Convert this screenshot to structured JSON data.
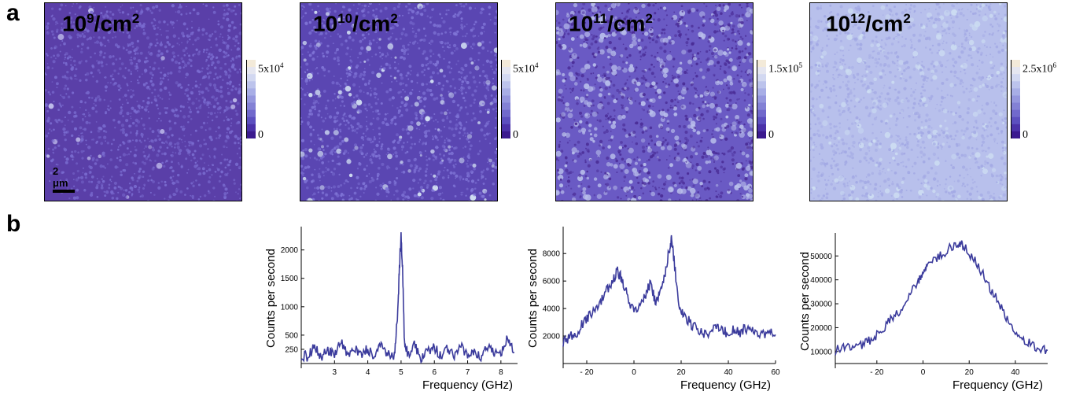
{
  "panels": {
    "a": "a",
    "b": "b"
  },
  "maps": [
    {
      "density_base": "10",
      "density_exp": "9",
      "density_unit": "/cm",
      "density_unit_exp": "2",
      "cbar_max_base": "5x10",
      "cbar_max_exp": "4",
      "cbar_min": "0",
      "base_color": "#5a3fa8",
      "speckle_color": "#7a6cd0",
      "bright_color": "#c7c6f0",
      "bright_fraction": 0.01
    },
    {
      "density_base": "10",
      "density_exp": "10",
      "density_unit": "/cm",
      "density_unit_exp": "2",
      "cbar_max_base": "5x10",
      "cbar_max_exp": "4",
      "cbar_min": "0",
      "base_color": "#5a46b2",
      "speckle_color": "#7f74d6",
      "bright_color": "#d7e6f5",
      "bright_fraction": 0.06
    },
    {
      "density_base": "10",
      "density_exp": "11",
      "density_unit": "/cm",
      "density_unit_exp": "2",
      "cbar_max_base": "1.5x10",
      "cbar_max_exp": "5",
      "cbar_min": "0",
      "base_color": "#6a5ac4",
      "speckle_color": "#4a2c96",
      "bright_color": "#b9bfeb",
      "bright_fraction": 0.3
    },
    {
      "density_base": "10",
      "density_exp": "12",
      "density_unit": "/cm",
      "density_unit_exp": "2",
      "cbar_max_base": "2.5x10",
      "cbar_max_exp": "6",
      "cbar_min": "0",
      "base_color": "#b8c0ec",
      "speckle_color": "#a3a9e4",
      "bright_color": "#cdddf2",
      "bright_fraction": 0.15
    }
  ],
  "scalebar": {
    "label": "2 μm"
  },
  "colorbar": {
    "colors": [
      "#f3ead9",
      "#e5e6f0",
      "#d2d8f1",
      "#bcc3ec",
      "#a8aee6",
      "#9597de",
      "#8381d5",
      "#7169cc",
      "#5c4fbf",
      "#4b32a9",
      "#3b1a8f"
    ]
  },
  "chart_data": [
    {
      "type": "line",
      "xlabel": "Frequency (GHz)",
      "ylabel": "Counts per second",
      "xlim": [
        2,
        8.5
      ],
      "ylim": [
        0,
        2300
      ],
      "xticks": [
        3,
        4,
        5,
        6,
        7,
        8
      ],
      "yticks": [
        250,
        500,
        1000,
        1500,
        2000
      ],
      "ytick_labels": [
        "250",
        "500",
        "1000",
        "1500",
        "2000"
      ],
      "line_color": "#3b3b9c",
      "series": [
        {
          "x": [
            2.0,
            2.2,
            2.4,
            2.6,
            2.8,
            3.0,
            3.2,
            3.4,
            3.6,
            3.8,
            4.0,
            4.2,
            4.4,
            4.6,
            4.8,
            4.9,
            4.95,
            5.0,
            5.05,
            5.1,
            5.2,
            5.4,
            5.6,
            5.8,
            6.0,
            6.2,
            6.4,
            6.6,
            6.8,
            7.0,
            7.2,
            7.4,
            7.6,
            7.8,
            8.0,
            8.2,
            8.4
          ],
          "y": [
            150,
            120,
            300,
            100,
            250,
            180,
            420,
            90,
            300,
            150,
            260,
            110,
            330,
            160,
            140,
            900,
            1700,
            2260,
            1600,
            400,
            160,
            340,
            110,
            200,
            290,
            120,
            280,
            130,
            300,
            160,
            240,
            90,
            320,
            210,
            140,
            450,
            200
          ]
        }
      ]
    },
    {
      "type": "line",
      "xlabel": "Frequency (GHz)",
      "ylabel": "Counts per second",
      "xlim": [
        -30,
        60
      ],
      "ylim": [
        0,
        9500
      ],
      "xticks": [
        -20,
        0,
        20,
        40,
        60
      ],
      "xtick_labels": [
        "- 20",
        "0",
        "20",
        "40",
        "60"
      ],
      "yticks": [
        2000,
        4000,
        6000,
        8000
      ],
      "ytick_labels": [
        "2000",
        "4000",
        "6000",
        "8000"
      ],
      "line_color": "#3b3b9c",
      "series": [
        {
          "x": [
            -30,
            -27,
            -24,
            -21,
            -18,
            -15,
            -12,
            -9,
            -7,
            -5,
            -3,
            0,
            3,
            5,
            7,
            9,
            11,
            13,
            15,
            16,
            17,
            19,
            21,
            24,
            27,
            30,
            33,
            36,
            39,
            42,
            45,
            48,
            51,
            54,
            57,
            60
          ],
          "y": [
            1600,
            1900,
            2300,
            3100,
            3700,
            4300,
            5200,
            6000,
            6700,
            6100,
            5000,
            3700,
            4200,
            5000,
            5900,
            4500,
            5200,
            6500,
            8300,
            9200,
            7500,
            4200,
            3600,
            2900,
            2500,
            2200,
            2400,
            2600,
            2300,
            2500,
            2300,
            2600,
            2200,
            2100,
            2300,
            2100
          ]
        }
      ]
    },
    {
      "type": "line",
      "xlabel": "Frequency (GHz)",
      "ylabel": "Counts per second",
      "xlim": [
        -38,
        54
      ],
      "ylim": [
        5000,
        57000
      ],
      "xticks": [
        -20,
        0,
        20,
        40
      ],
      "xtick_labels": [
        "- 20",
        "0",
        "20",
        "40"
      ],
      "yticks": [
        10000,
        20000,
        30000,
        40000,
        50000
      ],
      "ytick_labels": [
        "10000",
        "20000",
        "30000",
        "40000",
        "50000"
      ],
      "line_color": "#3b3b9c",
      "series": [
        {
          "x": [
            -38,
            -34,
            -30,
            -26,
            -22,
            -18,
            -14,
            -10,
            -6,
            -2,
            0,
            2,
            6,
            10,
            14,
            16,
            18,
            22,
            26,
            30,
            34,
            38,
            42,
            46,
            50,
            54
          ],
          "y": [
            10500,
            11200,
            11800,
            13000,
            15500,
            19000,
            23000,
            27500,
            33500,
            40000,
            44000,
            46500,
            49500,
            52000,
            54500,
            55500,
            53500,
            48500,
            42500,
            35000,
            28000,
            21500,
            16500,
            13500,
            11000,
            10500
          ]
        }
      ]
    }
  ]
}
